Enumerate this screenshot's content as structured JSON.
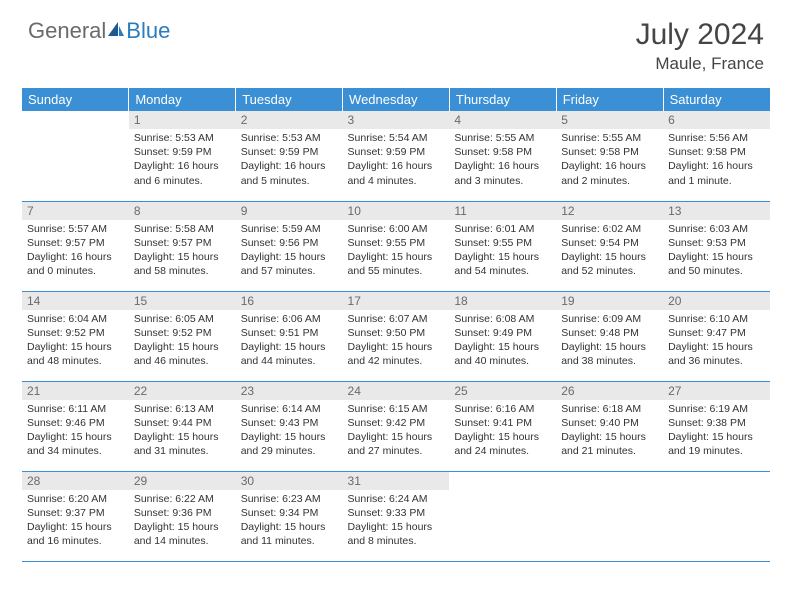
{
  "logo": {
    "part1": "General",
    "part2": "Blue"
  },
  "title": "July 2024",
  "location": "Maule, France",
  "colors": {
    "header_bg": "#3b8fd4",
    "header_text": "#ffffff",
    "daynum_bg": "#e9e9e9",
    "daynum_text": "#6a6a6a",
    "body_text": "#333333",
    "border": "#3b8fd4",
    "logo_gray": "#6a6a6a",
    "logo_blue": "#2b7bbf"
  },
  "weekdays": [
    "Sunday",
    "Monday",
    "Tuesday",
    "Wednesday",
    "Thursday",
    "Friday",
    "Saturday"
  ],
  "weeks": [
    [
      {
        "empty": true
      },
      {
        "n": "1",
        "sr": "Sunrise: 5:53 AM",
        "ss": "Sunset: 9:59 PM",
        "d1": "Daylight: 16 hours",
        "d2": "and 6 minutes."
      },
      {
        "n": "2",
        "sr": "Sunrise: 5:53 AM",
        "ss": "Sunset: 9:59 PM",
        "d1": "Daylight: 16 hours",
        "d2": "and 5 minutes."
      },
      {
        "n": "3",
        "sr": "Sunrise: 5:54 AM",
        "ss": "Sunset: 9:59 PM",
        "d1": "Daylight: 16 hours",
        "d2": "and 4 minutes."
      },
      {
        "n": "4",
        "sr": "Sunrise: 5:55 AM",
        "ss": "Sunset: 9:58 PM",
        "d1": "Daylight: 16 hours",
        "d2": "and 3 minutes."
      },
      {
        "n": "5",
        "sr": "Sunrise: 5:55 AM",
        "ss": "Sunset: 9:58 PM",
        "d1": "Daylight: 16 hours",
        "d2": "and 2 minutes."
      },
      {
        "n": "6",
        "sr": "Sunrise: 5:56 AM",
        "ss": "Sunset: 9:58 PM",
        "d1": "Daylight: 16 hours",
        "d2": "and 1 minute."
      }
    ],
    [
      {
        "n": "7",
        "sr": "Sunrise: 5:57 AM",
        "ss": "Sunset: 9:57 PM",
        "d1": "Daylight: 16 hours",
        "d2": "and 0 minutes."
      },
      {
        "n": "8",
        "sr": "Sunrise: 5:58 AM",
        "ss": "Sunset: 9:57 PM",
        "d1": "Daylight: 15 hours",
        "d2": "and 58 minutes."
      },
      {
        "n": "9",
        "sr": "Sunrise: 5:59 AM",
        "ss": "Sunset: 9:56 PM",
        "d1": "Daylight: 15 hours",
        "d2": "and 57 minutes."
      },
      {
        "n": "10",
        "sr": "Sunrise: 6:00 AM",
        "ss": "Sunset: 9:55 PM",
        "d1": "Daylight: 15 hours",
        "d2": "and 55 minutes."
      },
      {
        "n": "11",
        "sr": "Sunrise: 6:01 AM",
        "ss": "Sunset: 9:55 PM",
        "d1": "Daylight: 15 hours",
        "d2": "and 54 minutes."
      },
      {
        "n": "12",
        "sr": "Sunrise: 6:02 AM",
        "ss": "Sunset: 9:54 PM",
        "d1": "Daylight: 15 hours",
        "d2": "and 52 minutes."
      },
      {
        "n": "13",
        "sr": "Sunrise: 6:03 AM",
        "ss": "Sunset: 9:53 PM",
        "d1": "Daylight: 15 hours",
        "d2": "and 50 minutes."
      }
    ],
    [
      {
        "n": "14",
        "sr": "Sunrise: 6:04 AM",
        "ss": "Sunset: 9:52 PM",
        "d1": "Daylight: 15 hours",
        "d2": "and 48 minutes."
      },
      {
        "n": "15",
        "sr": "Sunrise: 6:05 AM",
        "ss": "Sunset: 9:52 PM",
        "d1": "Daylight: 15 hours",
        "d2": "and 46 minutes."
      },
      {
        "n": "16",
        "sr": "Sunrise: 6:06 AM",
        "ss": "Sunset: 9:51 PM",
        "d1": "Daylight: 15 hours",
        "d2": "and 44 minutes."
      },
      {
        "n": "17",
        "sr": "Sunrise: 6:07 AM",
        "ss": "Sunset: 9:50 PM",
        "d1": "Daylight: 15 hours",
        "d2": "and 42 minutes."
      },
      {
        "n": "18",
        "sr": "Sunrise: 6:08 AM",
        "ss": "Sunset: 9:49 PM",
        "d1": "Daylight: 15 hours",
        "d2": "and 40 minutes."
      },
      {
        "n": "19",
        "sr": "Sunrise: 6:09 AM",
        "ss": "Sunset: 9:48 PM",
        "d1": "Daylight: 15 hours",
        "d2": "and 38 minutes."
      },
      {
        "n": "20",
        "sr": "Sunrise: 6:10 AM",
        "ss": "Sunset: 9:47 PM",
        "d1": "Daylight: 15 hours",
        "d2": "and 36 minutes."
      }
    ],
    [
      {
        "n": "21",
        "sr": "Sunrise: 6:11 AM",
        "ss": "Sunset: 9:46 PM",
        "d1": "Daylight: 15 hours",
        "d2": "and 34 minutes."
      },
      {
        "n": "22",
        "sr": "Sunrise: 6:13 AM",
        "ss": "Sunset: 9:44 PM",
        "d1": "Daylight: 15 hours",
        "d2": "and 31 minutes."
      },
      {
        "n": "23",
        "sr": "Sunrise: 6:14 AM",
        "ss": "Sunset: 9:43 PM",
        "d1": "Daylight: 15 hours",
        "d2": "and 29 minutes."
      },
      {
        "n": "24",
        "sr": "Sunrise: 6:15 AM",
        "ss": "Sunset: 9:42 PM",
        "d1": "Daylight: 15 hours",
        "d2": "and 27 minutes."
      },
      {
        "n": "25",
        "sr": "Sunrise: 6:16 AM",
        "ss": "Sunset: 9:41 PM",
        "d1": "Daylight: 15 hours",
        "d2": "and 24 minutes."
      },
      {
        "n": "26",
        "sr": "Sunrise: 6:18 AM",
        "ss": "Sunset: 9:40 PM",
        "d1": "Daylight: 15 hours",
        "d2": "and 21 minutes."
      },
      {
        "n": "27",
        "sr": "Sunrise: 6:19 AM",
        "ss": "Sunset: 9:38 PM",
        "d1": "Daylight: 15 hours",
        "d2": "and 19 minutes."
      }
    ],
    [
      {
        "n": "28",
        "sr": "Sunrise: 6:20 AM",
        "ss": "Sunset: 9:37 PM",
        "d1": "Daylight: 15 hours",
        "d2": "and 16 minutes."
      },
      {
        "n": "29",
        "sr": "Sunrise: 6:22 AM",
        "ss": "Sunset: 9:36 PM",
        "d1": "Daylight: 15 hours",
        "d2": "and 14 minutes."
      },
      {
        "n": "30",
        "sr": "Sunrise: 6:23 AM",
        "ss": "Sunset: 9:34 PM",
        "d1": "Daylight: 15 hours",
        "d2": "and 11 minutes."
      },
      {
        "n": "31",
        "sr": "Sunrise: 6:24 AM",
        "ss": "Sunset: 9:33 PM",
        "d1": "Daylight: 15 hours",
        "d2": "and 8 minutes."
      },
      {
        "empty": true
      },
      {
        "empty": true
      },
      {
        "empty": true
      }
    ]
  ]
}
